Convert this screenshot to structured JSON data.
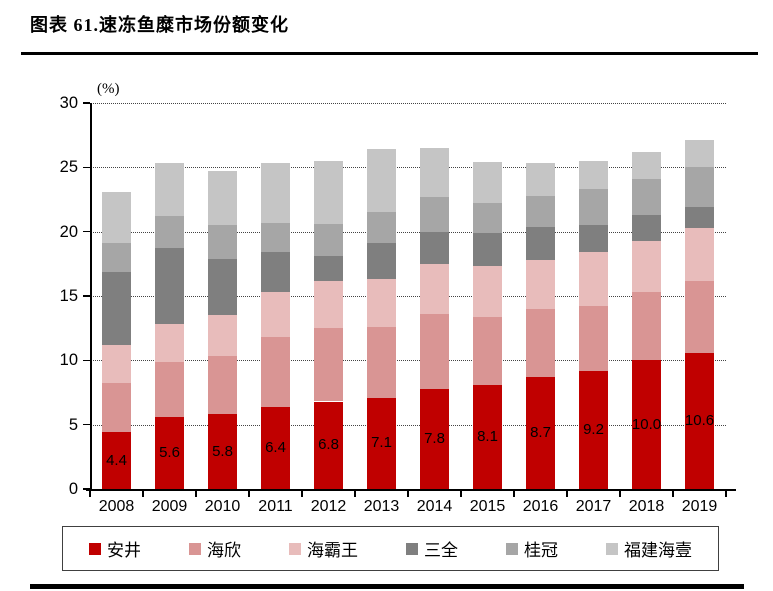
{
  "figure": {
    "title": "图表 61.速冻鱼糜市场份额变化"
  },
  "chart_data": {
    "type": "bar",
    "stacked": true,
    "title": "图表 61.速冻鱼糜市场份额变化",
    "unit_label": "(%)",
    "xlabel": "",
    "ylabel": "(%)",
    "ylim": [
      0,
      30
    ],
    "yticks": [
      0,
      5,
      10,
      15,
      20,
      25,
      30
    ],
    "grid": "horizontal-dotted",
    "legend_position": "bottom-boxed",
    "categories": [
      "2008",
      "2009",
      "2010",
      "2011",
      "2012",
      "2013",
      "2014",
      "2015",
      "2016",
      "2017",
      "2018",
      "2019"
    ],
    "series": [
      {
        "name": "安井",
        "color": "#C00000",
        "values": [
          4.4,
          5.6,
          5.8,
          6.4,
          6.8,
          7.1,
          7.8,
          8.1,
          8.7,
          9.2,
          10.0,
          10.6
        ]
      },
      {
        "name": "海欣",
        "color": "#D99594",
        "values": [
          3.8,
          4.3,
          4.5,
          5.4,
          5.7,
          5.5,
          5.8,
          5.3,
          5.3,
          5.0,
          5.3,
          5.6
        ]
      },
      {
        "name": "海霸王",
        "color": "#E8BCBB",
        "values": [
          3.0,
          2.9,
          3.2,
          3.5,
          3.7,
          3.7,
          3.9,
          3.9,
          3.8,
          4.2,
          4.0,
          4.1
        ]
      },
      {
        "name": "三全",
        "color": "#7F7F7F",
        "values": [
          5.7,
          5.9,
          4.4,
          3.1,
          1.9,
          2.8,
          2.5,
          2.6,
          2.6,
          2.1,
          2.0,
          1.6
        ]
      },
      {
        "name": "桂冠",
        "color": "#A6A6A6",
        "values": [
          2.2,
          2.5,
          2.6,
          2.3,
          2.5,
          2.4,
          2.7,
          2.3,
          2.4,
          2.8,
          2.8,
          3.1
        ]
      },
      {
        "name": "福建海壹",
        "color": "#C5C5C5",
        "values": [
          4.0,
          4.1,
          4.2,
          4.6,
          4.9,
          4.9,
          3.8,
          3.2,
          2.5,
          2.2,
          2.1,
          2.1
        ]
      }
    ],
    "bar_value_labels": {
      "series": "安井",
      "labels": [
        "4.4",
        "5.6",
        "5.8",
        "6.4",
        "6.8",
        "7.1",
        "7.8",
        "8.1",
        "8.7",
        "9.2",
        "10.0",
        "10.6"
      ]
    },
    "colors": {
      "axis": "#000000",
      "gridline": "#444444",
      "label_text": "#000000"
    }
  }
}
